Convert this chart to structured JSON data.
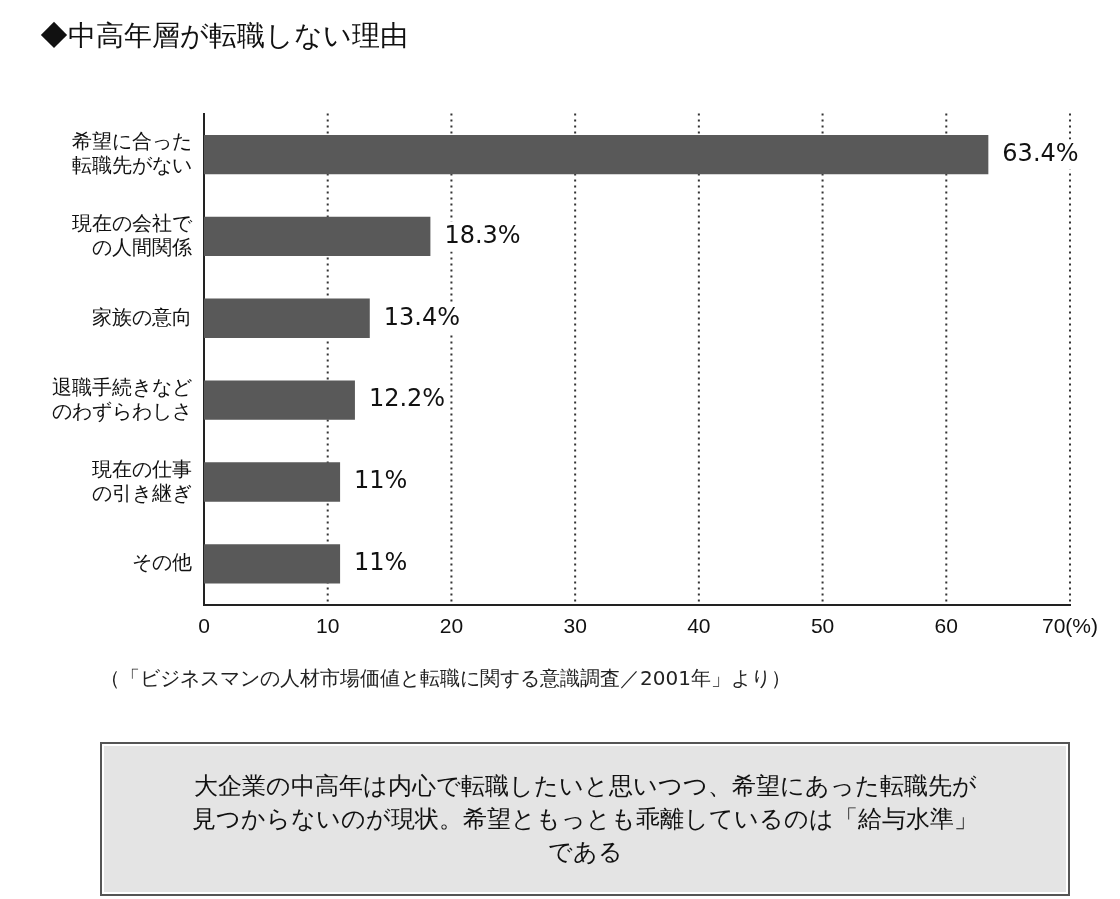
{
  "chart_data": {
    "type": "bar",
    "orientation": "horizontal",
    "title": "◆中高年層が転職しない理由",
    "categories": [
      "希望に合った転職先がない",
      "現在の会社での人間関係",
      "家族の意向",
      "退職手続きなどのわずらわしさ",
      "現在の仕事の引き継ぎ",
      "その他"
    ],
    "values": [
      63.4,
      18.3,
      13.4,
      12.2,
      11,
      11
    ],
    "value_labels": [
      "63.4%",
      "18.3%",
      "13.4%",
      "12.2%",
      "11%",
      "11%"
    ],
    "color": "#595959",
    "xlim": [
      0,
      70
    ],
    "xticks": [
      0,
      10,
      20,
      30,
      40,
      50,
      60,
      {
        "value": 70,
        "label": "70(%)"
      }
    ],
    "grid": "x",
    "annotations": [
      "（「ビジネスマンの人材市場価値と転職に関する意識調査／2001年」より）",
      "大企業の中高年は内心で転職したいと思いつつ、希望にあった転職先が見つからないのが現状。希望ともっとも乖離しているのは「給与水準」である"
    ]
  }
}
